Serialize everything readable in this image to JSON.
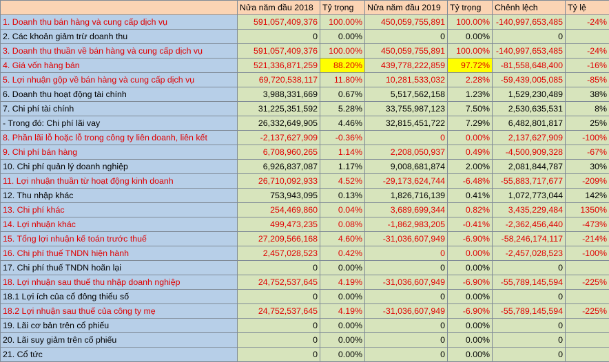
{
  "headers": [
    "",
    "Nửa năm đầu 2018",
    "Tỷ trọng",
    "Nửa năm đầu 2019",
    "Tỷ trọng",
    "Chênh lệch",
    "Tỷ lệ"
  ],
  "rows": [
    {
      "label": "1. Doanh thu bán hàng và cung cấp dịch vụ",
      "v2018": "591,057,409,376",
      "t2018": "100.00%",
      "v2019": "450,059,755,891",
      "t2019": "100.00%",
      "diff": "-140,997,653,485",
      "ratio": "-24%",
      "red": true
    },
    {
      "label": "2. Các khoản giảm trừ doanh thu",
      "v2018": "0",
      "t2018": "0.00%",
      "v2019": "0",
      "t2019": "0.00%",
      "diff": "0",
      "ratio": "",
      "red": false
    },
    {
      "label": "3. Doanh thu thuần về bán hàng và cung cấp dịch vụ",
      "v2018": "591,057,409,376",
      "t2018": "100.00%",
      "v2019": "450,059,755,891",
      "t2019": "100.00%",
      "diff": "-140,997,653,485",
      "ratio": "-24%",
      "red": true
    },
    {
      "label": "4. Giá vốn hàng bán",
      "v2018": "521,336,871,259",
      "t2018": "88.20%",
      "v2019": "439,778,222,859",
      "t2019": "97.72%",
      "diff": "-81,558,648,400",
      "ratio": "-16%",
      "red": true
    },
    {
      "label": "5. Lợi nhuận gộp về bán hàng và cung cấp dịch vụ",
      "v2018": "69,720,538,117",
      "t2018": "11.80%",
      "v2019": "10,281,533,032",
      "t2019": "2.28%",
      "diff": "-59,439,005,085",
      "ratio": "-85%",
      "red": true
    },
    {
      "label": "6. Doanh thu hoạt động tài chính",
      "v2018": "3,988,331,669",
      "t2018": "0.67%",
      "v2019": "5,517,562,158",
      "t2019": "1.23%",
      "diff": "1,529,230,489",
      "ratio": "38%",
      "red": false
    },
    {
      "label": "7. Chi phí tài chính",
      "v2018": "31,225,351,592",
      "t2018": "5.28%",
      "v2019": "33,755,987,123",
      "t2019": "7.50%",
      "diff": "2,530,635,531",
      "ratio": "8%",
      "red": false
    },
    {
      "label": " - Trong đó: Chi phí lãi vay",
      "v2018": "26,332,649,905",
      "t2018": "4.46%",
      "v2019": "32,815,451,722",
      "t2019": "7.29%",
      "diff": "6,482,801,817",
      "ratio": "25%",
      "red": false
    },
    {
      "label": "8. Phần lãi lỗ hoặc lỗ trong công ty liên doanh, liên kết",
      "v2018": "-2,137,627,909",
      "t2018": "-0.36%",
      "v2019": "0",
      "t2019": "0.00%",
      "diff": "2,137,627,909",
      "ratio": "-100%",
      "red": true
    },
    {
      "label": "9. Chi phí bán hàng",
      "v2018": "6,708,960,265",
      "t2018": "1.14%",
      "v2019": "2,208,050,937",
      "t2019": "0.49%",
      "diff": "-4,500,909,328",
      "ratio": "-67%",
      "red": true
    },
    {
      "label": "10. Chi phí quản lý doanh nghiệp",
      "v2018": "6,926,837,087",
      "t2018": "1.17%",
      "v2019": "9,008,681,874",
      "t2019": "2.00%",
      "diff": "2,081,844,787",
      "ratio": "30%",
      "red": false
    },
    {
      "label": "11. Lợi nhuận thuần từ hoạt động kinh doanh",
      "v2018": "26,710,092,933",
      "t2018": "4.52%",
      "v2019": "-29,173,624,744",
      "t2019": "-6.48%",
      "diff": "-55,883,717,677",
      "ratio": "-209%",
      "red": true
    },
    {
      "label": "12. Thu nhập khác",
      "v2018": "753,943,095",
      "t2018": "0.13%",
      "v2019": "1,826,716,139",
      "t2019": "0.41%",
      "diff": "1,072,773,044",
      "ratio": "142%",
      "red": false
    },
    {
      "label": "13. Chi phí khác",
      "v2018": "254,469,860",
      "t2018": "0.04%",
      "v2019": "3,689,699,344",
      "t2019": "0.82%",
      "diff": "3,435,229,484",
      "ratio": "1350%",
      "red": true
    },
    {
      "label": "14. Lợi nhuận khác",
      "v2018": "499,473,235",
      "t2018": "0.08%",
      "v2019": "-1,862,983,205",
      "t2019": "-0.41%",
      "diff": "-2,362,456,440",
      "ratio": "-473%",
      "red": true
    },
    {
      "label": "15. Tổng lợi nhuận kế toán trước thuế",
      "v2018": "27,209,566,168",
      "t2018": "4.60%",
      "v2019": "-31,036,607,949",
      "t2019": "-6.90%",
      "diff": "-58,246,174,117",
      "ratio": "-214%",
      "red": true
    },
    {
      "label": "16. Chi phí thuế TNDN hiện hành",
      "v2018": "2,457,028,523",
      "t2018": "0.42%",
      "v2019": "0",
      "t2019": "0.00%",
      "diff": "-2,457,028,523",
      "ratio": "-100%",
      "red": true
    },
    {
      "label": "17. Chi phí thuế TNDN hoãn lại",
      "v2018": "0",
      "t2018": "0.00%",
      "v2019": "0",
      "t2019": "0.00%",
      "diff": "0",
      "ratio": "",
      "red": false
    },
    {
      "label": "18. Lợi nhuận sau thuế thu nhập doanh nghiệp",
      "v2018": "24,752,537,645",
      "t2018": "4.19%",
      "v2019": "-31,036,607,949",
      "t2019": "-6.90%",
      "diff": "-55,789,145,594",
      "ratio": "-225%",
      "red": true
    },
    {
      "label": "18.1 Lợi ích của cổ đông thiểu số",
      "v2018": "0",
      "t2018": "0.00%",
      "v2019": "0",
      "t2019": "0.00%",
      "diff": "0",
      "ratio": "",
      "red": false
    },
    {
      "label": "18.2 Lợi nhuận sau thuế của công ty mẹ",
      "v2018": "24,752,537,645",
      "t2018": "4.19%",
      "v2019": "-31,036,607,949",
      "t2019": "-6.90%",
      "diff": "-55,789,145,594",
      "ratio": "-225%",
      "red": true
    },
    {
      "label": "19. Lãi cơ bản trên cổ phiếu",
      "v2018": "0",
      "t2018": "0.00%",
      "v2019": "0",
      "t2019": "0.00%",
      "diff": "0",
      "ratio": "",
      "red": false
    },
    {
      "label": "20. Lãi suy giảm trên cổ phiếu",
      "v2018": "0",
      "t2018": "0.00%",
      "v2019": "0",
      "t2019": "0.00%",
      "diff": "0",
      "ratio": "",
      "red": false
    },
    {
      "label": "21. Cổ tức",
      "v2018": "0",
      "t2018": "0.00%",
      "v2019": "0",
      "t2019": "0.00%",
      "diff": "0",
      "ratio": "",
      "red": false
    }
  ],
  "colors": {
    "header_bg": "#fbd4b4",
    "label_bg": "#b7cfe8",
    "value_bg": "#d7e4bc",
    "highlight_bg": "#ffff00",
    "negative_text": "#e00000"
  }
}
